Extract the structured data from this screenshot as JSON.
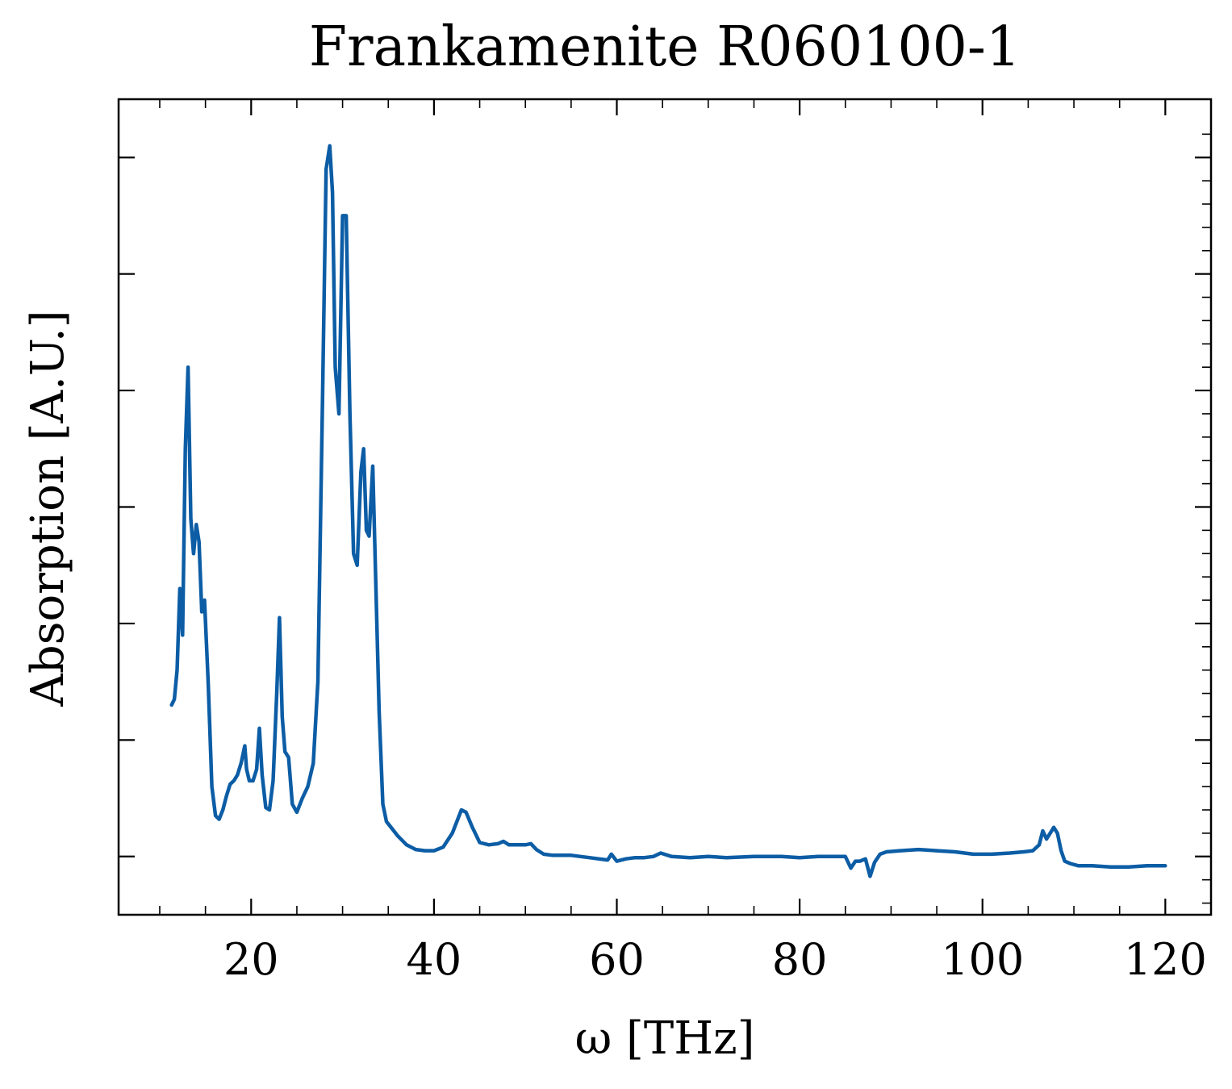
{
  "chart_data": {
    "type": "line",
    "title": "Frankamenite R060100-1",
    "xlabel": "ω [THz]",
    "ylabel": "Absorption [A.U.]",
    "xlim": [
      5.5,
      125
    ],
    "ylim": [
      -0.5,
      6.5
    ],
    "x_ticks": [
      20,
      40,
      60,
      80,
      100,
      120
    ],
    "x_tick_labels": [
      "20",
      "40",
      "60",
      "80",
      "100",
      "120"
    ],
    "y_ticks": [
      0,
      1,
      2,
      3,
      4,
      5,
      6
    ],
    "y_tick_labels": [],
    "grid": false,
    "line_color": "#0C5DA5",
    "series": [
      {
        "x": [
          11.3,
          11.6,
          11.9,
          12.2,
          12.5,
          12.8,
          13.1,
          13.4,
          13.7,
          14.0,
          14.3,
          14.6,
          14.9,
          15.3,
          15.7,
          16.1,
          16.5,
          16.9,
          17.3,
          17.7,
          18.1,
          18.5,
          18.9,
          19.3,
          19.5,
          19.8,
          20.2,
          20.6,
          20.9,
          21.2,
          21.6,
          22.0,
          22.4,
          22.8,
          23.1,
          23.4,
          23.7,
          24.1,
          24.5,
          25.0,
          25.6,
          26.2,
          26.8,
          27.3,
          27.8,
          28.2,
          28.6,
          28.9,
          29.2,
          29.6,
          30.0,
          30.4,
          30.8,
          31.2,
          31.6,
          32.0,
          32.3,
          32.6,
          32.9,
          33.3,
          33.6,
          34.0,
          34.4,
          34.8,
          35.3,
          36.0,
          37.0,
          38.0,
          39.0,
          40.0,
          41.0,
          42.0,
          43.0,
          43.5,
          44.2,
          45.0,
          46.0,
          47.0,
          47.6,
          48.2,
          49.0,
          50.0,
          50.6,
          51.2,
          52.0,
          53.0,
          55.0,
          57.0,
          59.0,
          59.4,
          60.0,
          61.0,
          62.0,
          63.0,
          64.0,
          64.8,
          66.0,
          68.0,
          70.0,
          72.0,
          75.0,
          78.0,
          80.0,
          82.0,
          84.0,
          85.0,
          85.6,
          86.1,
          86.6,
          87.2,
          87.7,
          88.2,
          88.8,
          89.5,
          91.0,
          93.0,
          95.0,
          97.0,
          99.0,
          101.0,
          103.0,
          104.5,
          105.5,
          106.2,
          106.6,
          107.0,
          107.4,
          107.8,
          108.2,
          108.6,
          109.0,
          109.6,
          110.5,
          112.0,
          114.0,
          116.0,
          118.0,
          120.0
        ],
        "y": [
          1.3,
          1.35,
          1.6,
          2.3,
          1.9,
          3.5,
          4.2,
          2.9,
          2.6,
          2.85,
          2.7,
          2.1,
          2.2,
          1.5,
          0.6,
          0.35,
          0.32,
          0.4,
          0.52,
          0.62,
          0.65,
          0.7,
          0.8,
          0.95,
          0.75,
          0.65,
          0.65,
          0.75,
          1.1,
          0.7,
          0.42,
          0.4,
          0.65,
          1.4,
          2.05,
          1.2,
          0.9,
          0.85,
          0.45,
          0.38,
          0.5,
          0.6,
          0.8,
          1.5,
          3.9,
          5.9,
          6.1,
          5.7,
          4.2,
          3.8,
          5.5,
          5.5,
          3.8,
          2.6,
          2.5,
          3.3,
          3.5,
          2.8,
          2.75,
          3.35,
          2.45,
          1.25,
          0.45,
          0.3,
          0.25,
          0.18,
          0.1,
          0.06,
          0.05,
          0.05,
          0.08,
          0.2,
          0.4,
          0.38,
          0.25,
          0.12,
          0.1,
          0.11,
          0.13,
          0.1,
          0.1,
          0.1,
          0.11,
          0.06,
          0.02,
          0.01,
          0.01,
          -0.01,
          -0.03,
          0.02,
          -0.04,
          -0.02,
          -0.01,
          -0.01,
          0.0,
          0.03,
          0.0,
          -0.01,
          0.0,
          -0.01,
          0.0,
          0.0,
          -0.01,
          0.0,
          0.0,
          0.0,
          -0.1,
          -0.04,
          -0.04,
          -0.02,
          -0.17,
          -0.05,
          0.02,
          0.04,
          0.05,
          0.06,
          0.05,
          0.04,
          0.02,
          0.02,
          0.03,
          0.04,
          0.05,
          0.1,
          0.22,
          0.15,
          0.2,
          0.25,
          0.2,
          0.05,
          -0.04,
          -0.06,
          -0.08,
          -0.08,
          -0.09,
          -0.09,
          -0.08,
          -0.08
        ]
      }
    ]
  }
}
